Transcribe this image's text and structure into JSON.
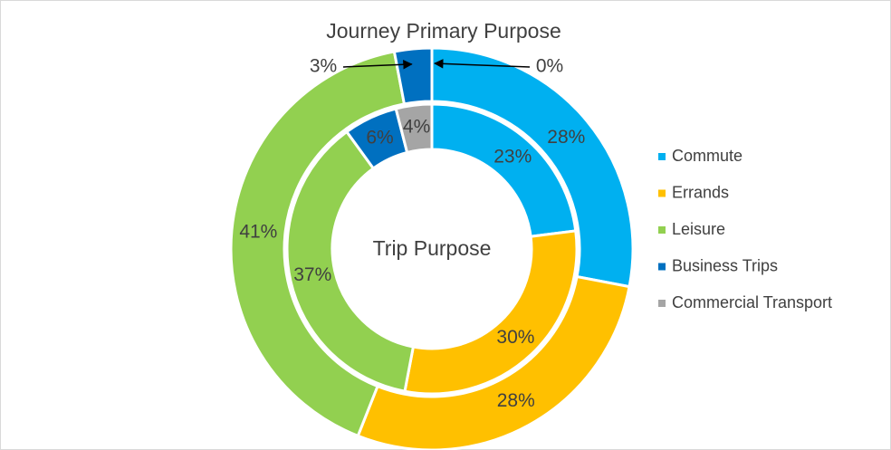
{
  "chart_data": {
    "type": "pie",
    "title": "Journey Primary Purpose",
    "subtitle": "Trip Purpose",
    "categories": [
      "Commute",
      "Errands",
      "Leisure",
      "Business Trips",
      "Commercial Transport"
    ],
    "colors": [
      "#00b0f0",
      "#ffc000",
      "#92d050",
      "#0070c0",
      "#a5a5a5"
    ],
    "series": [
      {
        "name": "Journey Primary Purpose",
        "values": [
          28,
          28,
          41,
          3,
          0
        ],
        "value_labels": [
          "28%",
          "28%",
          "41%",
          "3%",
          "0%"
        ]
      },
      {
        "name": "Trip Purpose",
        "values": [
          23,
          30,
          37,
          6,
          4
        ],
        "value_labels": [
          "23%",
          "30%",
          "37%",
          "6%",
          "4%"
        ]
      }
    ],
    "legend": "right"
  }
}
